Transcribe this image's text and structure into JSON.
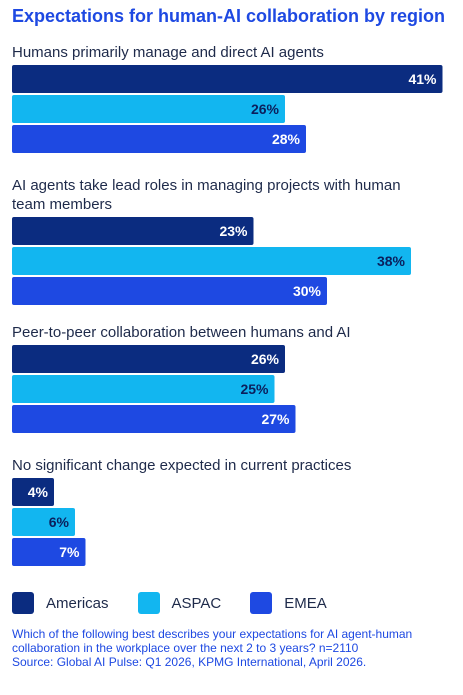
{
  "chart_data": {
    "type": "bar",
    "orientation": "horizontal",
    "title": "Expectations for human-AI collaboration by region",
    "categories": [
      [
        "Humans primarily manage and direct AI agents"
      ],
      [
        "AI agents take lead roles in managing projects with human",
        "team members"
      ],
      [
        "Peer-to-peer collaboration between humans and AI"
      ],
      [
        "No significant change expected in current practices"
      ]
    ],
    "series": [
      {
        "name": "Americas",
        "color": "#0B2C80",
        "values": [
          41,
          23,
          26,
          4
        ]
      },
      {
        "name": "ASPAC",
        "color": "#12B6F0",
        "values": [
          26,
          38,
          25,
          6
        ]
      },
      {
        "name": "EMEA",
        "color": "#1E49E2",
        "values": [
          28,
          30,
          27,
          7
        ]
      }
    ],
    "value_suffix": "%",
    "xlim": [
      0,
      42
    ],
    "grid": false,
    "legend": "bottom-left"
  },
  "footnote": {
    "question": "Which of the following best describes your expectations for AI agent-human collaboration in the workplace over the next 2 to 3 years? n=2110",
    "source": "Source: Global AI Pulse: Q1 2026, KPMG International, April 2026."
  }
}
